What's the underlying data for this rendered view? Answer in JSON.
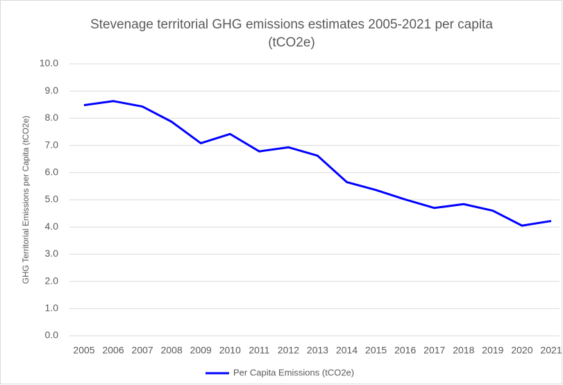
{
  "chart_data": {
    "type": "line",
    "title": [
      "Stevenage territorial GHG emissions estimates 2005-2021 per capita",
      "(tCO2e)"
    ],
    "y_label": "GHG Territorial Emissions per Capita  (tCO2e)",
    "categories": [
      "2005",
      "2006",
      "2007",
      "2008",
      "2009",
      "2010",
      "2011",
      "2012",
      "2013",
      "2014",
      "2015",
      "2016",
      "2017",
      "2018",
      "2019",
      "2020",
      "2021"
    ],
    "series": [
      {
        "name": "Per Capita Emissions (tCO2e)",
        "color": "#0000ff",
        "values": [
          8.48,
          8.63,
          8.43,
          7.87,
          7.08,
          7.42,
          6.78,
          6.93,
          6.62,
          5.65,
          5.36,
          5.01,
          4.7,
          4.84,
          4.6,
          4.05,
          4.22
        ]
      }
    ],
    "ylim": [
      0,
      10
    ],
    "yticks": [
      {
        "value": 0,
        "label": "0.0"
      },
      {
        "value": 1,
        "label": "1.0"
      },
      {
        "value": 2,
        "label": "2.0"
      },
      {
        "value": 3,
        "label": "3.0"
      },
      {
        "value": 4,
        "label": "4.0"
      },
      {
        "value": 5,
        "label": "5.0"
      },
      {
        "value": 6,
        "label": "6.0"
      },
      {
        "value": 7,
        "label": "7.0"
      },
      {
        "value": 8,
        "label": "8.0"
      },
      {
        "value": 9,
        "label": "9.0"
      },
      {
        "value": 10,
        "label": "10.0"
      }
    ],
    "grid": true,
    "legend": "bottom"
  }
}
